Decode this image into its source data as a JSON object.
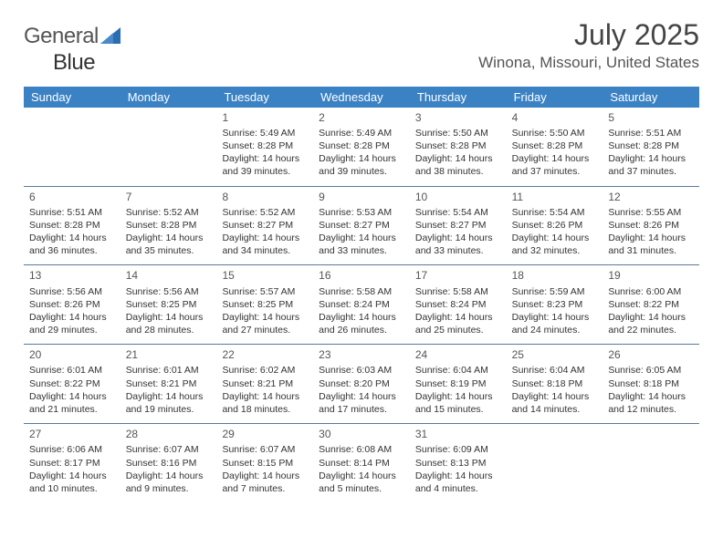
{
  "logo": {
    "part1": "General",
    "part2": "Blue"
  },
  "title": "July 2025",
  "location": "Winona, Missouri, United States",
  "styling": {
    "page_bg": "#ffffff",
    "header_bg": "#3b82c4",
    "header_text_color": "#ffffff",
    "week_border_color": "#5a7a9a",
    "text_color": "#333333",
    "title_color": "#444444",
    "location_color": "#555555",
    "daynum_color": "#555555",
    "logo_triangle_color": "#2a6db0",
    "title_fontsize": 32,
    "location_fontsize": 17,
    "header_fontsize": 13,
    "cell_fontsize": 10.5
  },
  "day_names": [
    "Sunday",
    "Monday",
    "Tuesday",
    "Wednesday",
    "Thursday",
    "Friday",
    "Saturday"
  ],
  "weeks": [
    [
      null,
      null,
      {
        "n": "1",
        "sr": "5:49 AM",
        "ss": "8:28 PM",
        "dl": "14 hours and 39 minutes."
      },
      {
        "n": "2",
        "sr": "5:49 AM",
        "ss": "8:28 PM",
        "dl": "14 hours and 39 minutes."
      },
      {
        "n": "3",
        "sr": "5:50 AM",
        "ss": "8:28 PM",
        "dl": "14 hours and 38 minutes."
      },
      {
        "n": "4",
        "sr": "5:50 AM",
        "ss": "8:28 PM",
        "dl": "14 hours and 37 minutes."
      },
      {
        "n": "5",
        "sr": "5:51 AM",
        "ss": "8:28 PM",
        "dl": "14 hours and 37 minutes."
      }
    ],
    [
      {
        "n": "6",
        "sr": "5:51 AM",
        "ss": "8:28 PM",
        "dl": "14 hours and 36 minutes."
      },
      {
        "n": "7",
        "sr": "5:52 AM",
        "ss": "8:28 PM",
        "dl": "14 hours and 35 minutes."
      },
      {
        "n": "8",
        "sr": "5:52 AM",
        "ss": "8:27 PM",
        "dl": "14 hours and 34 minutes."
      },
      {
        "n": "9",
        "sr": "5:53 AM",
        "ss": "8:27 PM",
        "dl": "14 hours and 33 minutes."
      },
      {
        "n": "10",
        "sr": "5:54 AM",
        "ss": "8:27 PM",
        "dl": "14 hours and 33 minutes."
      },
      {
        "n": "11",
        "sr": "5:54 AM",
        "ss": "8:26 PM",
        "dl": "14 hours and 32 minutes."
      },
      {
        "n": "12",
        "sr": "5:55 AM",
        "ss": "8:26 PM",
        "dl": "14 hours and 31 minutes."
      }
    ],
    [
      {
        "n": "13",
        "sr": "5:56 AM",
        "ss": "8:26 PM",
        "dl": "14 hours and 29 minutes."
      },
      {
        "n": "14",
        "sr": "5:56 AM",
        "ss": "8:25 PM",
        "dl": "14 hours and 28 minutes."
      },
      {
        "n": "15",
        "sr": "5:57 AM",
        "ss": "8:25 PM",
        "dl": "14 hours and 27 minutes."
      },
      {
        "n": "16",
        "sr": "5:58 AM",
        "ss": "8:24 PM",
        "dl": "14 hours and 26 minutes."
      },
      {
        "n": "17",
        "sr": "5:58 AM",
        "ss": "8:24 PM",
        "dl": "14 hours and 25 minutes."
      },
      {
        "n": "18",
        "sr": "5:59 AM",
        "ss": "8:23 PM",
        "dl": "14 hours and 24 minutes."
      },
      {
        "n": "19",
        "sr": "6:00 AM",
        "ss": "8:22 PM",
        "dl": "14 hours and 22 minutes."
      }
    ],
    [
      {
        "n": "20",
        "sr": "6:01 AM",
        "ss": "8:22 PM",
        "dl": "14 hours and 21 minutes."
      },
      {
        "n": "21",
        "sr": "6:01 AM",
        "ss": "8:21 PM",
        "dl": "14 hours and 19 minutes."
      },
      {
        "n": "22",
        "sr": "6:02 AM",
        "ss": "8:21 PM",
        "dl": "14 hours and 18 minutes."
      },
      {
        "n": "23",
        "sr": "6:03 AM",
        "ss": "8:20 PM",
        "dl": "14 hours and 17 minutes."
      },
      {
        "n": "24",
        "sr": "6:04 AM",
        "ss": "8:19 PM",
        "dl": "14 hours and 15 minutes."
      },
      {
        "n": "25",
        "sr": "6:04 AM",
        "ss": "8:18 PM",
        "dl": "14 hours and 14 minutes."
      },
      {
        "n": "26",
        "sr": "6:05 AM",
        "ss": "8:18 PM",
        "dl": "14 hours and 12 minutes."
      }
    ],
    [
      {
        "n": "27",
        "sr": "6:06 AM",
        "ss": "8:17 PM",
        "dl": "14 hours and 10 minutes."
      },
      {
        "n": "28",
        "sr": "6:07 AM",
        "ss": "8:16 PM",
        "dl": "14 hours and 9 minutes."
      },
      {
        "n": "29",
        "sr": "6:07 AM",
        "ss": "8:15 PM",
        "dl": "14 hours and 7 minutes."
      },
      {
        "n": "30",
        "sr": "6:08 AM",
        "ss": "8:14 PM",
        "dl": "14 hours and 5 minutes."
      },
      {
        "n": "31",
        "sr": "6:09 AM",
        "ss": "8:13 PM",
        "dl": "14 hours and 4 minutes."
      },
      null,
      null
    ]
  ]
}
